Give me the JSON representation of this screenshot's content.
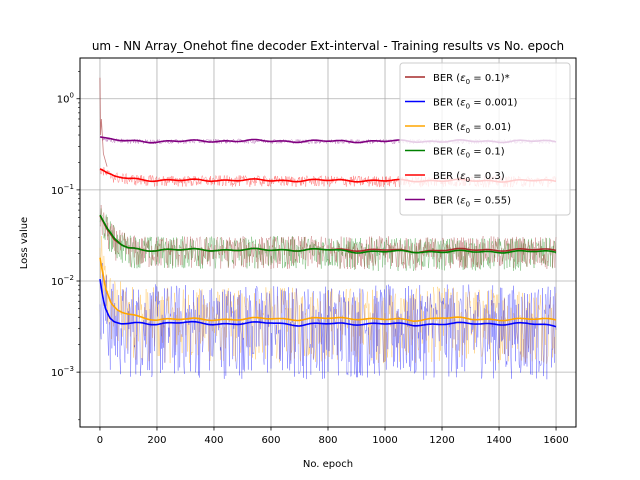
{
  "chart_data": {
    "type": "line",
    "title": "um - NN Array_Onehot fine decoder Ext-interval - Training results vs No. epoch",
    "xlabel": "No. epoch",
    "ylabel": "Loss value",
    "xlim": [
      -70,
      1670
    ],
    "ylim": [
      0.00025,
      2.8
    ],
    "yscale": "log",
    "grid": true,
    "legend_position": "top-right",
    "x_ticks": [
      0,
      200,
      400,
      600,
      800,
      1000,
      1200,
      1400,
      1600
    ],
    "y_ticks": [
      {
        "value": 0.001,
        "base": "10",
        "exp": "−3"
      },
      {
        "value": 0.01,
        "base": "10",
        "exp": "−2"
      },
      {
        "value": 0.1,
        "base": "10",
        "exp": "−1"
      },
      {
        "value": 1,
        "base": "10",
        "exp": "0"
      }
    ],
    "series": [
      {
        "name": "BER (ε0 = 0.1)*",
        "label_prefix": "BER (",
        "label_eps": "ε",
        "label_sub": "0",
        "label_suffix": " = 0.1)*",
        "color": "#a52a2a",
        "x": [
          0,
          25,
          50,
          75,
          100,
          150,
          200,
          300,
          400,
          500,
          600,
          700,
          800,
          900,
          1000,
          1100,
          1200,
          1300,
          1400,
          1500,
          1600
        ],
        "y": [
          0.052,
          0.036,
          0.028,
          0.025,
          0.023,
          0.022,
          0.022,
          0.022,
          0.022,
          0.022,
          0.022,
          0.022,
          0.022,
          0.022,
          0.022,
          0.021,
          0.022,
          0.022,
          0.022,
          0.022,
          0.022
        ]
      },
      {
        "name": "BER (ε0 = 0.001)",
        "label_prefix": "BER (",
        "label_eps": "ε",
        "label_sub": "0",
        "label_suffix": " = 0.001)",
        "color": "#0000ff",
        "x": [
          0,
          10,
          20,
          35,
          50,
          75,
          100,
          150,
          200,
          300,
          400,
          500,
          600,
          700,
          800,
          900,
          1000,
          1100,
          1200,
          1300,
          1400,
          1500,
          1600
        ],
        "y": [
          0.0105,
          0.0065,
          0.0048,
          0.0038,
          0.0035,
          0.0034,
          0.0034,
          0.0035,
          0.0034,
          0.0035,
          0.0034,
          0.0034,
          0.0035,
          0.0033,
          0.0034,
          0.0034,
          0.0034,
          0.0033,
          0.0034,
          0.0034,
          0.0034,
          0.0034,
          0.0032
        ]
      },
      {
        "name": "BER (ε0 = 0.01)",
        "label_prefix": "BER (",
        "label_eps": "ε",
        "label_sub": "0",
        "label_suffix": " = 0.01)",
        "color": "#ffa500",
        "x": [
          0,
          20,
          40,
          60,
          80,
          100,
          150,
          200,
          300,
          400,
          500,
          600,
          700,
          800,
          900,
          1000,
          1100,
          1200,
          1300,
          1400,
          1500,
          1600
        ],
        "y": [
          0.018,
          0.008,
          0.0055,
          0.0048,
          0.0045,
          0.0043,
          0.004,
          0.0038,
          0.0038,
          0.0038,
          0.0038,
          0.0039,
          0.0038,
          0.0039,
          0.0039,
          0.0038,
          0.0037,
          0.004,
          0.0038,
          0.0038,
          0.0038,
          0.0038
        ]
      },
      {
        "name": "BER (ε0 = 0.1)",
        "label_prefix": "BER (",
        "label_eps": "ε",
        "label_sub": "0",
        "label_suffix": " = 0.1)",
        "color": "#008000",
        "x": [
          0,
          25,
          50,
          75,
          100,
          150,
          200,
          300,
          400,
          500,
          600,
          700,
          800,
          900,
          1000,
          1100,
          1200,
          1300,
          1400,
          1500,
          1600
        ],
        "y": [
          0.053,
          0.037,
          0.029,
          0.025,
          0.023,
          0.022,
          0.022,
          0.022,
          0.022,
          0.022,
          0.022,
          0.022,
          0.022,
          0.021,
          0.021,
          0.021,
          0.021,
          0.021,
          0.021,
          0.021,
          0.021
        ]
      },
      {
        "name": "BER (ε0 = 0.3)",
        "label_prefix": "BER (",
        "label_eps": "ε",
        "label_sub": "0",
        "label_suffix": " = 0.3)",
        "color": "#ff0000",
        "x": [
          0,
          25,
          50,
          100,
          150,
          200,
          300,
          400,
          500,
          600,
          700,
          800,
          900,
          1000,
          1100,
          1200,
          1300,
          1400,
          1500,
          1600
        ],
        "y": [
          0.17,
          0.15,
          0.14,
          0.133,
          0.13,
          0.128,
          0.127,
          0.128,
          0.128,
          0.127,
          0.127,
          0.127,
          0.127,
          0.126,
          0.126,
          0.127,
          0.126,
          0.126,
          0.126,
          0.126
        ]
      },
      {
        "name": "BER (ε0 = 0.55)",
        "label_prefix": "BER (",
        "label_eps": "ε",
        "label_sub": "0",
        "label_suffix": " = 0.55)",
        "color": "#800080",
        "x": [
          0,
          25,
          50,
          100,
          150,
          200,
          300,
          400,
          500,
          600,
          700,
          800,
          900,
          1000,
          1100,
          1200,
          1300,
          1400,
          1500,
          1600
        ],
        "y": [
          0.38,
          0.36,
          0.35,
          0.345,
          0.342,
          0.34,
          0.342,
          0.345,
          0.345,
          0.345,
          0.342,
          0.342,
          0.342,
          0.342,
          0.342,
          0.342,
          0.342,
          0.342,
          0.342,
          0.342
        ]
      }
    ],
    "raw_series_style": "thin translucent noisy traces behind smoothed lines",
    "initial_spike": {
      "x": 0,
      "y": 1.7,
      "color": "#a52a2a"
    }
  }
}
